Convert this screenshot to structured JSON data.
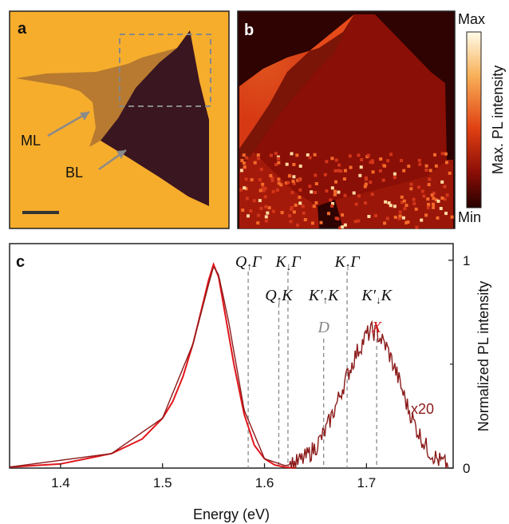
{
  "panel_a": {
    "letter": "a",
    "ml_label": "ML",
    "bl_label": "BL",
    "colors": {
      "substrate": "#f6ad2c",
      "monolayer": "#b77a30",
      "bilayer": "#3a1620"
    }
  },
  "panel_b": {
    "letter": "b",
    "colorbar": {
      "max_label": "Max",
      "min_label": "Min",
      "title": "Max. PL intensity"
    },
    "colors": {
      "high": "#fffbe8",
      "mid": "#e04012",
      "low": "#260000"
    }
  },
  "chart_data": {
    "type": "line",
    "letter": "c",
    "xlabel": "Energy (eV)",
    "ylabel": "Normalized PL intensity",
    "xlim": [
      1.35,
      1.785
    ],
    "ylim": [
      0,
      1.08
    ],
    "xticks": [
      "1.4",
      "1.5",
      "1.6",
      "1.7"
    ],
    "xtick_values": [
      1.4,
      1.5,
      1.6,
      1.7
    ],
    "yticks": [
      "0",
      "1"
    ],
    "ytick_values": [
      0,
      1
    ],
    "grid": false,
    "series": [
      {
        "color": "#e0161b",
        "x": [
          1.35,
          1.4,
          1.45,
          1.48,
          1.5,
          1.51,
          1.52,
          1.53,
          1.54,
          1.545,
          1.55,
          1.555,
          1.56,
          1.57,
          1.58,
          1.59,
          1.6,
          1.61,
          1.62,
          1.63
        ],
        "y": [
          0.005,
          0.02,
          0.07,
          0.14,
          0.24,
          0.32,
          0.44,
          0.6,
          0.8,
          0.9,
          0.98,
          0.92,
          0.78,
          0.5,
          0.26,
          0.11,
          0.045,
          0.015,
          0.005,
          0.0
        ]
      },
      {
        "color": "#8b1a1a",
        "label": "x20",
        "x": [
          1.35,
          1.45,
          1.5,
          1.53,
          1.545,
          1.55,
          1.555,
          1.565,
          1.58,
          1.6,
          1.62,
          1.63,
          1.64,
          1.65,
          1.66,
          1.67,
          1.68,
          1.69,
          1.7,
          1.705,
          1.71,
          1.72,
          1.73,
          1.74,
          1.75,
          1.76,
          1.77,
          1.78
        ],
        "y": [
          0.005,
          0.07,
          0.24,
          0.6,
          0.88,
          0.97,
          0.93,
          0.7,
          0.28,
          0.045,
          0.012,
          0.02,
          0.05,
          0.1,
          0.18,
          0.3,
          0.43,
          0.55,
          0.64,
          0.66,
          0.65,
          0.58,
          0.45,
          0.3,
          0.18,
          0.09,
          0.04,
          0.01
        ]
      }
    ],
    "markers": [
      {
        "x": 1.584,
        "label_main": "Q",
        "label_sub": "↑",
        "label_end": "Γ",
        "row": 1
      },
      {
        "x": 1.614,
        "label_main": "Q",
        "label_sub": "↑",
        "label_end": "K",
        "row": 2
      },
      {
        "x": 1.623,
        "label_main": "K",
        "label_sub": "↓",
        "label_end": "Γ",
        "row": 1
      },
      {
        "x": 1.658,
        "label_main": "K′",
        "label_sub": "↑",
        "label_end": "K",
        "row": 2,
        "sublabel": "D",
        "sublabel_color": "#888888"
      },
      {
        "x": 1.681,
        "label_main": "K",
        "label_sub": "↑",
        "label_end": "Γ",
        "row": 1
      },
      {
        "x": 1.71,
        "label_main": "K′",
        "label_sub": "↓",
        "label_end": "K",
        "row": 2,
        "sublabel": "X",
        "sublabel_color": "#d4181b"
      }
    ]
  }
}
